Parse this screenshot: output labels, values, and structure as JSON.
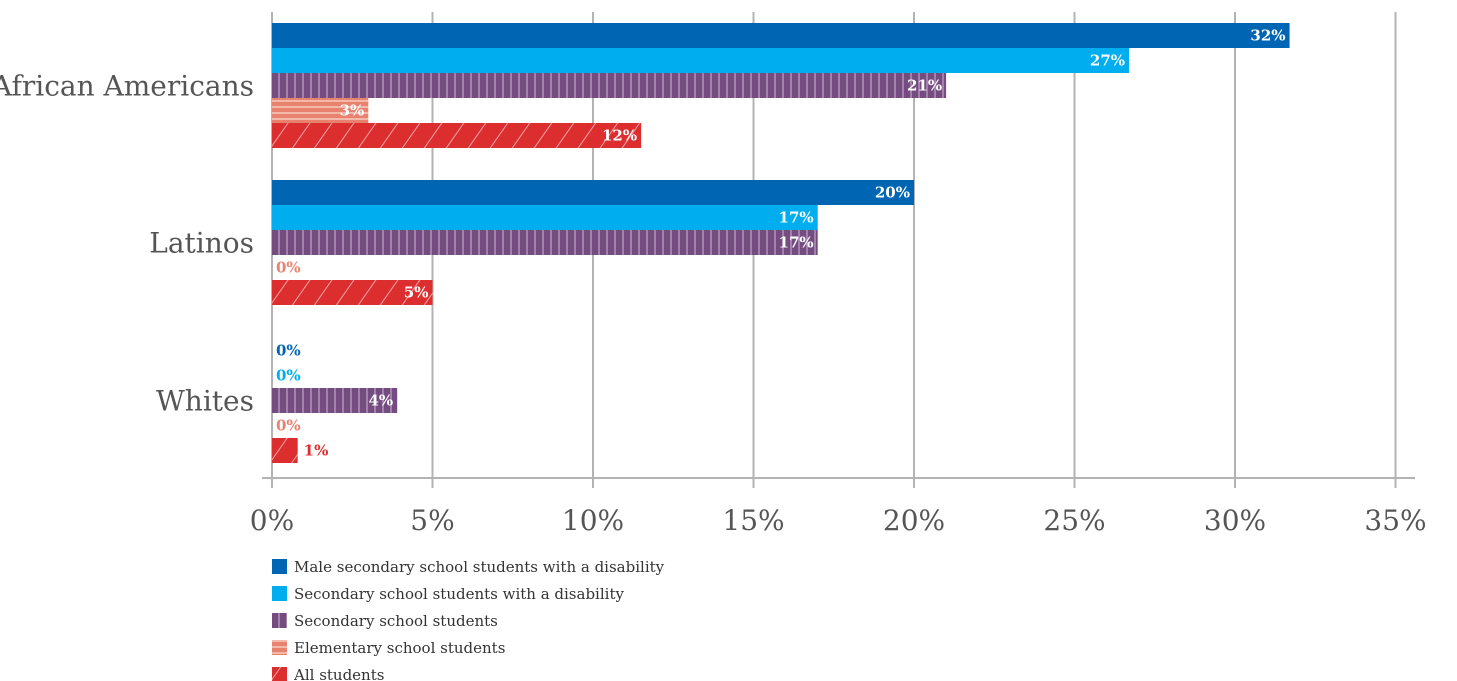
{
  "chart_data": {
    "type": "bar",
    "orientation": "horizontal",
    "categories": [
      "African Americans",
      "Latinos",
      "Whites"
    ],
    "series": [
      {
        "name": "Male secondary school students with a disability",
        "values": [
          31.7,
          20.0,
          0.0
        ],
        "labels": [
          "32%",
          "20%",
          "0%"
        ],
        "color": "#0066b3",
        "pattern": "solid"
      },
      {
        "name": "Secondary school students with a disability",
        "values": [
          26.7,
          17.0,
          0.0
        ],
        "labels": [
          "27%",
          "17%",
          "0%"
        ],
        "color": "#00aeef",
        "pattern": "solid"
      },
      {
        "name": "Secondary school students",
        "values": [
          21.0,
          17.0,
          3.9
        ],
        "labels": [
          "21%",
          "17%",
          "4%"
        ],
        "color": "#754c7f",
        "pattern": "vertical-stripes"
      },
      {
        "name": "Elementary school students",
        "values": [
          3.0,
          0.0,
          0.0
        ],
        "labels": [
          "3%",
          "0%",
          "0%"
        ],
        "color": "#e8826e",
        "pattern": "horizontal-stripes"
      },
      {
        "name": "All students",
        "values": [
          11.5,
          5.0,
          0.8
        ],
        "labels": [
          "12%",
          "5%",
          "1%"
        ],
        "color": "#dc2e2e",
        "pattern": "diagonal-stripes"
      }
    ],
    "xlim": [
      0,
      35
    ],
    "xticks": [
      "0%",
      "5%",
      "10%",
      "15%",
      "20%",
      "25%",
      "30%",
      "35%"
    ],
    "grid": "vertical",
    "legend_position": "bottom-left",
    "title": "",
    "xlabel": "",
    "ylabel": ""
  }
}
